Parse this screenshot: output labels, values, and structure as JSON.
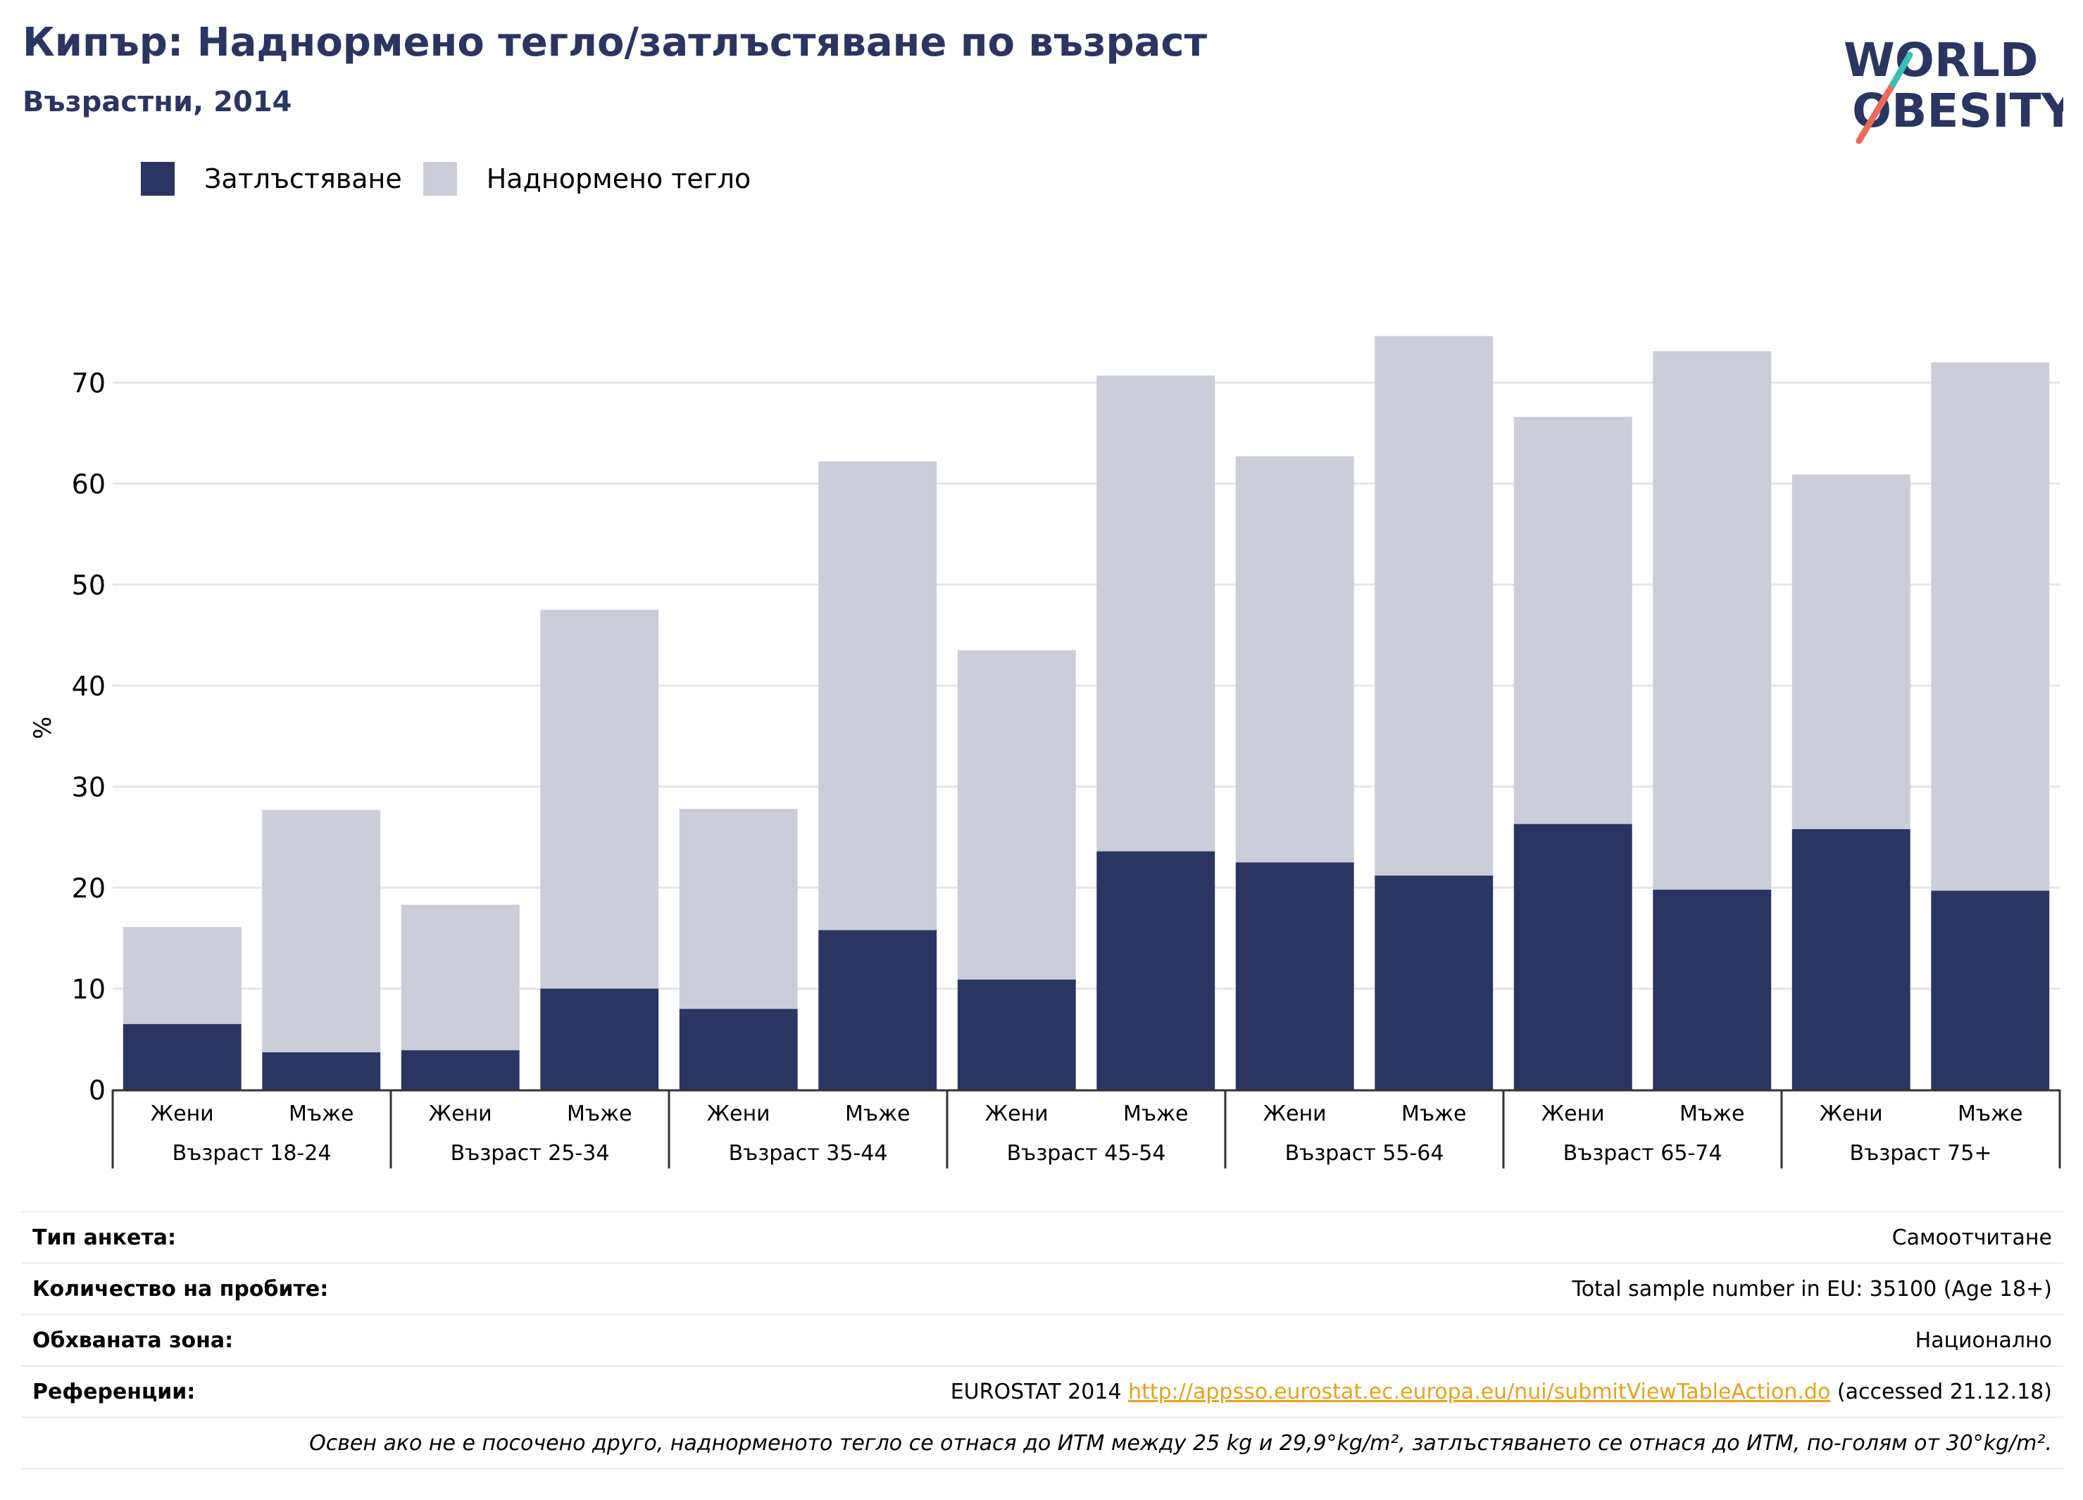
{
  "title": "Кипър: Наднормено тегло/затлъстяване по възраст",
  "subtitle": "Възрастни, 2014",
  "logo": {
    "line1": "WORLD",
    "line2": "OBESITY",
    "colors": [
      "#2a3562",
      "#e96a5a",
      "#3bbfb7"
    ]
  },
  "colors": {
    "obesity": "#2a3562",
    "overweight": "#cbcdd8",
    "title": "#2a3562",
    "grid": "#e6e6e6"
  },
  "legend": [
    {
      "label": "Затлъстяване",
      "color": "#2a3562"
    },
    {
      "label": "Наднормено тегло",
      "color": "#cbcdd8"
    }
  ],
  "chart_data": {
    "type": "bar",
    "stacked": true,
    "ylabel": "%",
    "ylim": [
      0,
      80
    ],
    "yticks": [
      0,
      10,
      20,
      30,
      40,
      50,
      60,
      70
    ],
    "grid": true,
    "legend_position": "top-left",
    "groups": [
      "Възраст 18-24",
      "Възраст 25-34",
      "Възраст 35-44",
      "Възраст 45-54",
      "Възраст 55-64",
      "Възраст 65-74",
      "Възраст 75+"
    ],
    "subcategories": [
      "Жени",
      "Мъже"
    ],
    "series": [
      {
        "name": "Затлъстяване",
        "values": [
          6.5,
          3.7,
          3.9,
          10.0,
          8.0,
          15.8,
          10.9,
          23.6,
          22.5,
          21.2,
          26.3,
          19.8,
          25.8,
          19.7
        ]
      },
      {
        "name": "Наднормено тегло",
        "values": [
          9.6,
          24.0,
          14.4,
          37.5,
          19.8,
          46.4,
          32.6,
          47.1,
          40.2,
          53.4,
          40.3,
          53.3,
          35.1,
          52.3
        ]
      }
    ]
  },
  "info": {
    "survey_type": {
      "key": "Тип анкета:",
      "value": "Самоотчитане"
    },
    "sample": {
      "key": "Количество на пробите:",
      "value": "Total sample number in EU: 35100 (Age 18+)"
    },
    "area": {
      "key": "Обхваната зона:",
      "value": "Национално"
    },
    "references": {
      "key": "Референции:",
      "prefix": "EUROSTAT 2014 ",
      "link": "http://appsso.eurostat.ec.europa.eu/nui/submitViewTableAction.do",
      "suffix": " (accessed 21.12.18)"
    },
    "note": "Освен ако не е посочено друго, наднорменото тегло се отнася до ИТМ между 25 kg и 29,9°kg/m², затлъстяването се отнася до ИТМ, по-голям от 30°kg/m²."
  }
}
